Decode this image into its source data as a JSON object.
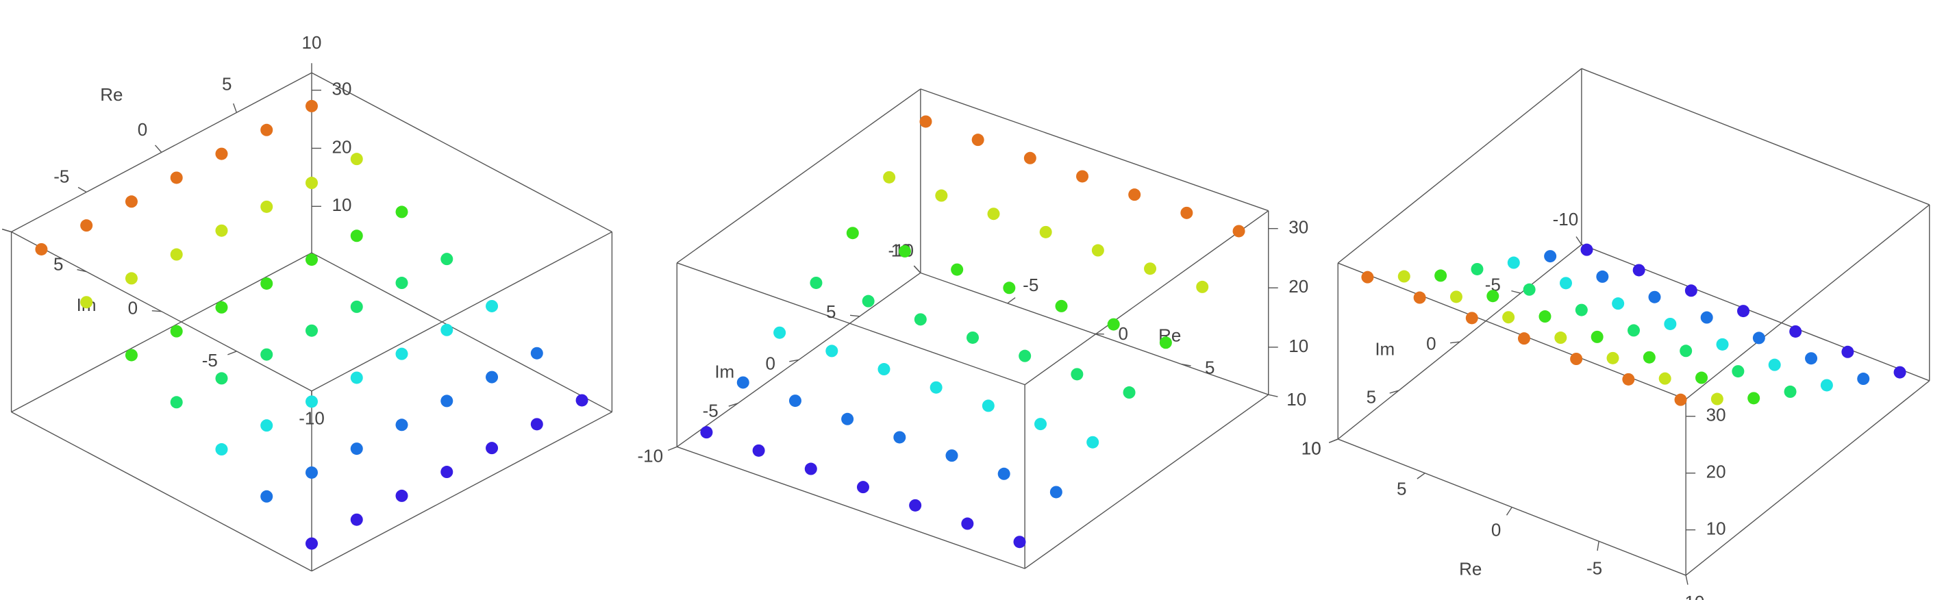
{
  "chart_data": {
    "type": "scatter3d",
    "xlabel": "Re",
    "ylabel": "Im",
    "xlim": [
      -10,
      10
    ],
    "ylim": [
      -10,
      10
    ],
    "zlim": [
      2,
      33
    ],
    "xticks": [
      -10,
      -5,
      0,
      5,
      10
    ],
    "yticks": [
      -10,
      -5,
      0,
      5,
      10
    ],
    "zticks": [
      10,
      20,
      30
    ],
    "colormap": "rainbow",
    "x": [
      -9,
      -9,
      -9,
      -9,
      -9,
      -9,
      -9,
      -6,
      -6,
      -6,
      -6,
      -6,
      -6,
      -6,
      -3,
      -3,
      -3,
      -3,
      -3,
      -3,
      -3,
      0,
      0,
      0,
      0,
      0,
      0,
      0,
      3,
      3,
      3,
      3,
      3,
      3,
      3,
      6,
      6,
      6,
      6,
      6,
      6,
      6,
      9,
      9,
      9,
      9,
      9,
      9,
      9
    ],
    "y": [
      -9,
      -6,
      -3,
      0,
      3,
      6,
      9,
      -9,
      -6,
      -3,
      0,
      3,
      6,
      9,
      -9,
      -6,
      -3,
      0,
      3,
      6,
      9,
      -9,
      -6,
      -3,
      0,
      3,
      6,
      9,
      -9,
      -6,
      -3,
      0,
      3,
      6,
      9,
      -9,
      -6,
      -3,
      0,
      3,
      6,
      9,
      -9,
      -6,
      -3,
      0,
      3,
      6,
      9
    ],
    "z": [
      4,
      8,
      12,
      16,
      20,
      25,
      30,
      4,
      8,
      12,
      16,
      20,
      25,
      30,
      4,
      8,
      12,
      16,
      20,
      25,
      30,
      4,
      8,
      12,
      16,
      20,
      25,
      30,
      4,
      8,
      12,
      16,
      20,
      25,
      30,
      4,
      8,
      12,
      16,
      20,
      25,
      30,
      4,
      8,
      12,
      16,
      20,
      25,
      30
    ]
  }
}
